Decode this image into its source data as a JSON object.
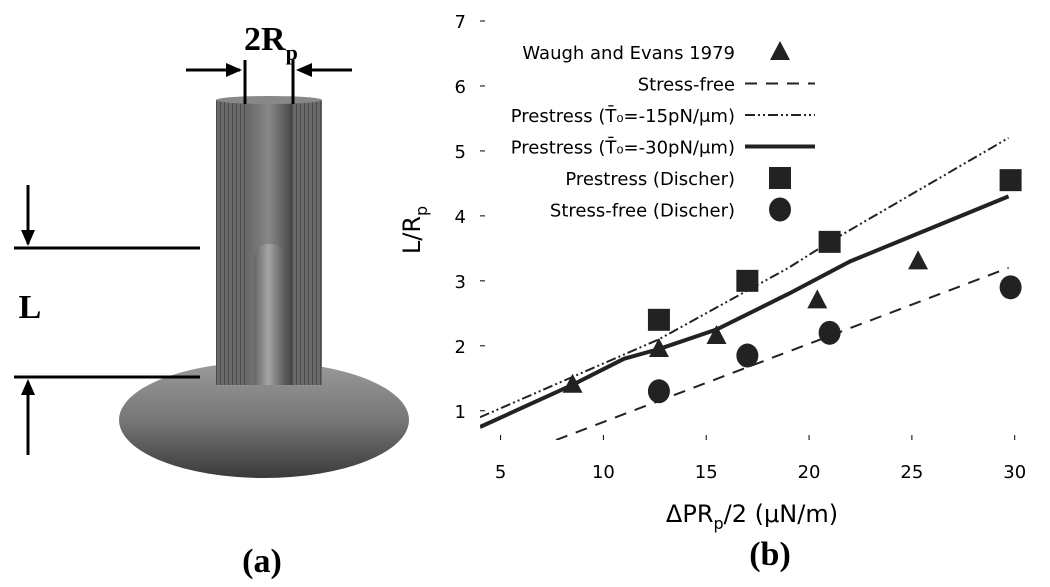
{
  "panel_a": {
    "width_label": [
      "2R",
      "p"
    ],
    "length_label": "L",
    "caption": "(a)"
  },
  "chart_data": {
    "type": "line",
    "caption": "(b)",
    "xlabel": [
      "ΔPR",
      "p",
      "/2 (μN/m)"
    ],
    "ylabel": [
      "L/R",
      "p"
    ],
    "xlim": [
      4,
      30.5
    ],
    "ylim": [
      0.55,
      7
    ],
    "xticks": [
      5,
      10,
      15,
      20,
      25,
      30
    ],
    "yticks": [
      1,
      2,
      3,
      4,
      5,
      6,
      7
    ],
    "series": [
      {
        "name": "Waugh and Evans 1979",
        "type": "scatter",
        "marker": "triangle",
        "color": "#222222",
        "x": [
          8.5,
          12.7,
          15.5,
          20.4,
          25.3
        ],
        "values": [
          1.4,
          1.95,
          2.15,
          2.7,
          3.3
        ]
      },
      {
        "name": "Stress-free",
        "type": "line",
        "dash": "dashed",
        "color": "#222222",
        "x": [
          7.7,
          29.7
        ],
        "values": [
          0.55,
          3.2
        ]
      },
      {
        "name": "Prestress (T̄₀=-15pN/μm)",
        "type": "line",
        "dash": "dashdot",
        "color": "#222222",
        "x": [
          4,
          12.7,
          19,
          21,
          29.7
        ],
        "values": [
          0.9,
          2.1,
          3.2,
          3.6,
          5.2
        ]
      },
      {
        "name": "Prestress (T̄₀=-30pN/μm)",
        "type": "line",
        "dash": "solid",
        "color": "#222222",
        "x": [
          4,
          8.5,
          11,
          12.7,
          15.5,
          19,
          22,
          29.7
        ],
        "values": [
          0.75,
          1.4,
          1.8,
          1.95,
          2.25,
          2.8,
          3.3,
          4.3
        ]
      },
      {
        "name": "Prestress (Discher)",
        "type": "scatter",
        "marker": "square",
        "color": "#222222",
        "x": [
          12.7,
          17,
          21,
          29.8
        ],
        "values": [
          2.4,
          3.0,
          3.6,
          4.55
        ]
      },
      {
        "name": "Stress-free (Discher)",
        "type": "scatter",
        "marker": "circle",
        "color": "#222222",
        "x": [
          12.7,
          17,
          21,
          29.8
        ],
        "values": [
          1.3,
          1.85,
          2.2,
          2.9
        ]
      }
    ]
  }
}
